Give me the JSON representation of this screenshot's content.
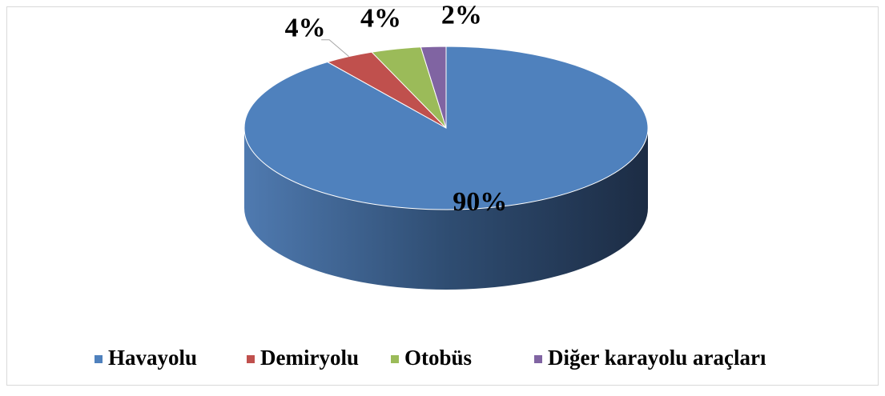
{
  "chart_data": {
    "type": "pie",
    "categories": [
      "Havayolu",
      "Demiryolu",
      "Otobüs",
      "Diğer karayolu araçları"
    ],
    "values": [
      90,
      4,
      4,
      2
    ],
    "value_labels": [
      "90%",
      "4%",
      "4%",
      "2%"
    ],
    "colors": [
      "#4f81bd",
      "#c0504d",
      "#9bbb59",
      "#8064a2"
    ],
    "legend": "bottom"
  }
}
